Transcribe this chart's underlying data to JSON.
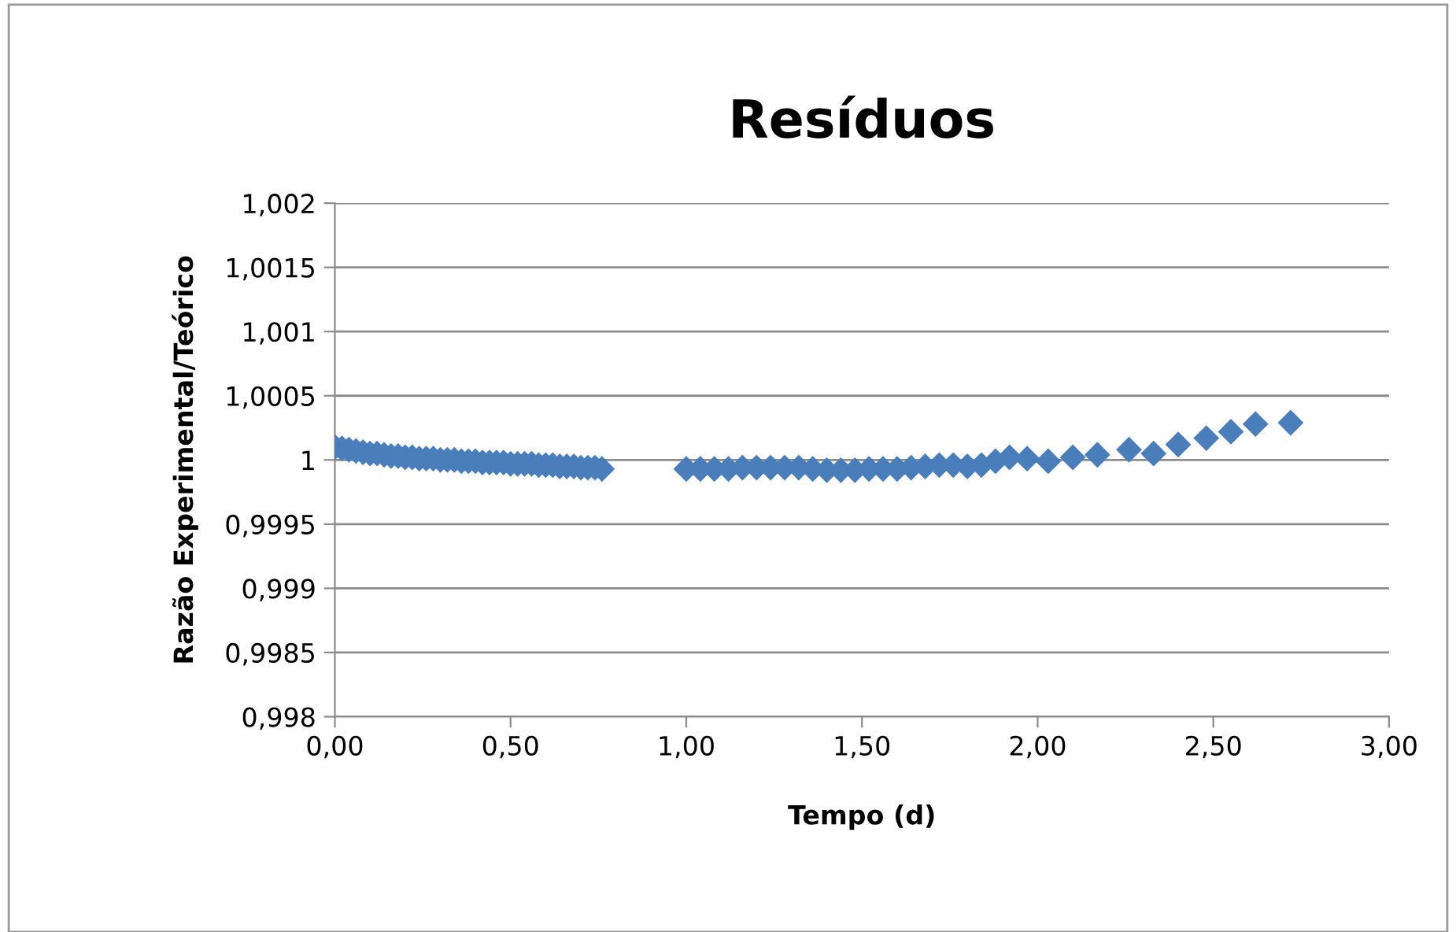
{
  "chart_data": {
    "type": "scatter",
    "title": "Resíduos",
    "xlabel": "Tempo (d)",
    "ylabel": "Razão Experimental/Teórico",
    "series": [
      {
        "color": "#4a7ebb",
        "x": [
          0,
          0.02,
          0.04,
          0.06,
          0.08,
          0.1,
          0.12,
          0.14,
          0.16,
          0.18,
          0.2,
          0.22,
          0.24,
          0.26,
          0.28,
          0.3,
          0.32,
          0.34,
          0.36,
          0.38,
          0.4,
          0.42,
          0.44,
          0.46,
          0.48,
          0.5,
          0.52,
          0.54,
          0.56,
          0.58,
          0.6,
          0.62,
          0.64,
          0.66,
          0.68,
          0.7,
          0.72,
          0.74,
          0.76,
          1.0,
          1.04,
          1.08,
          1.12,
          1.16,
          1.2,
          1.24,
          1.28,
          1.32,
          1.36,
          1.4,
          1.44,
          1.48,
          1.52,
          1.56,
          1.6,
          1.64,
          1.68,
          1.72,
          1.76,
          1.8,
          1.84,
          1.88,
          1.92,
          1.97,
          2.03,
          2.1,
          2.17,
          2.26,
          2.33,
          2.4,
          2.48,
          2.55,
          2.62,
          2.72
        ],
        "values": [
          1.0001,
          1.00009,
          1.00008,
          1.00007,
          1.00006,
          1.00005,
          1.00005,
          1.00004,
          1.00003,
          1.00003,
          1.00002,
          1.00002,
          1.00001,
          1.00001,
          1.00001,
          1.0,
          1.0,
          1.0,
          0.99999,
          0.99999,
          0.99999,
          0.99998,
          0.99998,
          0.99998,
          0.99998,
          0.99997,
          0.99997,
          0.99997,
          0.99997,
          0.99996,
          0.99996,
          0.99996,
          0.99995,
          0.99995,
          0.99995,
          0.99994,
          0.99994,
          0.99994,
          0.99993,
          0.99993,
          0.99993,
          0.99993,
          0.99993,
          0.99994,
          0.99994,
          0.99994,
          0.99994,
          0.99994,
          0.99993,
          0.99992,
          0.99992,
          0.99992,
          0.99993,
          0.99993,
          0.99993,
          0.99994,
          0.99995,
          0.99996,
          0.99996,
          0.99995,
          0.99996,
          0.99999,
          1.00002,
          1.00001,
          0.99999,
          1.00002,
          1.00004,
          1.00008,
          1.00005,
          1.00012,
          1.00017,
          1.00022,
          1.00028,
          1.00029
        ]
      }
    ],
    "xlim": [
      0,
      3
    ],
    "xticks": [
      {
        "value": 0,
        "label": "0,00"
      },
      {
        "value": 0.5,
        "label": "0,50"
      },
      {
        "value": 1,
        "label": "1,00"
      },
      {
        "value": 1.5,
        "label": "1,50"
      },
      {
        "value": 2,
        "label": "2,00"
      },
      {
        "value": 2.5,
        "label": "2,50"
      },
      {
        "value": 3,
        "label": "3,00"
      }
    ],
    "ylim": [
      0.998,
      1.002
    ],
    "yticks": [
      {
        "value": 0.998,
        "label": "0,998"
      },
      {
        "value": 0.9985,
        "label": "0,9985"
      },
      {
        "value": 0.999,
        "label": "0,999"
      },
      {
        "value": 0.9995,
        "label": "0,9995"
      },
      1,
      {
        "value": 1.0005,
        "label": "1,0005"
      },
      {
        "value": 1.001,
        "label": "1,001"
      },
      {
        "value": 1.0015,
        "label": "1,0015"
      },
      {
        "value": 1.002,
        "label": "1,002"
      }
    ],
    "grid": "y",
    "marker": "diamond"
  }
}
